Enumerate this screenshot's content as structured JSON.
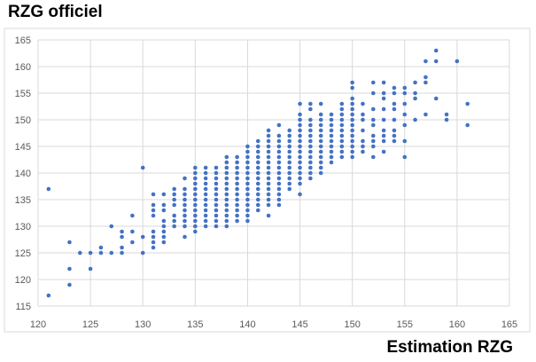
{
  "chart_data": {
    "type": "scatter",
    "xlabel": "Estimation RZG",
    "ylabel": "RZG officiel",
    "xlim": [
      120,
      165
    ],
    "ylim": [
      115,
      165
    ],
    "xticks": [
      120,
      125,
      130,
      135,
      140,
      145,
      150,
      155,
      160,
      165
    ],
    "yticks": [
      115,
      120,
      125,
      130,
      135,
      140,
      145,
      150,
      155,
      160,
      165
    ],
    "grid": true,
    "marker_color": "#4472c4",
    "series": [
      {
        "points": [
          [
            121,
            137
          ],
          [
            121,
            117
          ],
          [
            123,
            127
          ],
          [
            123,
            122
          ],
          [
            123,
            119
          ],
          [
            124,
            125
          ],
          [
            125,
            125
          ],
          [
            125,
            122
          ],
          [
            126,
            126
          ],
          [
            126,
            125
          ],
          [
            127,
            130
          ],
          [
            127,
            125
          ],
          [
            128,
            129
          ],
          [
            128,
            128
          ],
          [
            128,
            126
          ],
          [
            128,
            125
          ],
          [
            129,
            132
          ],
          [
            129,
            129
          ],
          [
            129,
            127
          ],
          [
            130,
            141
          ],
          [
            130,
            128
          ],
          [
            130,
            125
          ],
          [
            131,
            136
          ],
          [
            131,
            134
          ],
          [
            131,
            133
          ],
          [
            131,
            132
          ],
          [
            131,
            129
          ],
          [
            131,
            128
          ],
          [
            131,
            127
          ],
          [
            131,
            126
          ],
          [
            132,
            136
          ],
          [
            132,
            134
          ],
          [
            132,
            133
          ],
          [
            132,
            131
          ],
          [
            132,
            130
          ],
          [
            132,
            129
          ],
          [
            132,
            128
          ],
          [
            132,
            127
          ],
          [
            133,
            137
          ],
          [
            133,
            136
          ],
          [
            133,
            135
          ],
          [
            133,
            134
          ],
          [
            133,
            132
          ],
          [
            133,
            131
          ],
          [
            133,
            130
          ],
          [
            134,
            139
          ],
          [
            134,
            137
          ],
          [
            134,
            136
          ],
          [
            134,
            135
          ],
          [
            134,
            134
          ],
          [
            134,
            133
          ],
          [
            134,
            132
          ],
          [
            134,
            131
          ],
          [
            134,
            130
          ],
          [
            134,
            128
          ],
          [
            135,
            141
          ],
          [
            135,
            140
          ],
          [
            135,
            139
          ],
          [
            135,
            138
          ],
          [
            135,
            137
          ],
          [
            135,
            136
          ],
          [
            135,
            135
          ],
          [
            135,
            134
          ],
          [
            135,
            133
          ],
          [
            135,
            132
          ],
          [
            135,
            131
          ],
          [
            135,
            130
          ],
          [
            135,
            129
          ],
          [
            136,
            141
          ],
          [
            136,
            140
          ],
          [
            136,
            139
          ],
          [
            136,
            138
          ],
          [
            136,
            137
          ],
          [
            136,
            136
          ],
          [
            136,
            135
          ],
          [
            136,
            134
          ],
          [
            136,
            133
          ],
          [
            136,
            132
          ],
          [
            136,
            131
          ],
          [
            136,
            130
          ],
          [
            137,
            141
          ],
          [
            137,
            140
          ],
          [
            137,
            139
          ],
          [
            137,
            138
          ],
          [
            137,
            137
          ],
          [
            137,
            136
          ],
          [
            137,
            135
          ],
          [
            137,
            134
          ],
          [
            137,
            133
          ],
          [
            137,
            132
          ],
          [
            137,
            131
          ],
          [
            137,
            130
          ],
          [
            138,
            143
          ],
          [
            138,
            142
          ],
          [
            138,
            141
          ],
          [
            138,
            140
          ],
          [
            138,
            139
          ],
          [
            138,
            138
          ],
          [
            138,
            137
          ],
          [
            138,
            136
          ],
          [
            138,
            135
          ],
          [
            138,
            134
          ],
          [
            138,
            133
          ],
          [
            138,
            132
          ],
          [
            138,
            131
          ],
          [
            138,
            130
          ],
          [
            139,
            143
          ],
          [
            139,
            142
          ],
          [
            139,
            141
          ],
          [
            139,
            140
          ],
          [
            139,
            139
          ],
          [
            139,
            138
          ],
          [
            139,
            137
          ],
          [
            139,
            136
          ],
          [
            139,
            135
          ],
          [
            139,
            134
          ],
          [
            139,
            133
          ],
          [
            139,
            132
          ],
          [
            139,
            131
          ],
          [
            140,
            145
          ],
          [
            140,
            144
          ],
          [
            140,
            143
          ],
          [
            140,
            142
          ],
          [
            140,
            141
          ],
          [
            140,
            140
          ],
          [
            140,
            139
          ],
          [
            140,
            138
          ],
          [
            140,
            137
          ],
          [
            140,
            136
          ],
          [
            140,
            135
          ],
          [
            140,
            134
          ],
          [
            140,
            133
          ],
          [
            140,
            132
          ],
          [
            140,
            131
          ],
          [
            141,
            146
          ],
          [
            141,
            145
          ],
          [
            141,
            144
          ],
          [
            141,
            143
          ],
          [
            141,
            142
          ],
          [
            141,
            141
          ],
          [
            141,
            140
          ],
          [
            141,
            139
          ],
          [
            141,
            138
          ],
          [
            141,
            137
          ],
          [
            141,
            136
          ],
          [
            141,
            135
          ],
          [
            141,
            134
          ],
          [
            141,
            133
          ],
          [
            142,
            148
          ],
          [
            142,
            147
          ],
          [
            142,
            146
          ],
          [
            142,
            145
          ],
          [
            142,
            144
          ],
          [
            142,
            143
          ],
          [
            142,
            142
          ],
          [
            142,
            141
          ],
          [
            142,
            140
          ],
          [
            142,
            139
          ],
          [
            142,
            138
          ],
          [
            142,
            137
          ],
          [
            142,
            136
          ],
          [
            142,
            135
          ],
          [
            142,
            134
          ],
          [
            142,
            132
          ],
          [
            143,
            149
          ],
          [
            143,
            147
          ],
          [
            143,
            146
          ],
          [
            143,
            145
          ],
          [
            143,
            144
          ],
          [
            143,
            143
          ],
          [
            143,
            142
          ],
          [
            143,
            141
          ],
          [
            143,
            140
          ],
          [
            143,
            139
          ],
          [
            143,
            138
          ],
          [
            143,
            137
          ],
          [
            143,
            136
          ],
          [
            143,
            135
          ],
          [
            143,
            134
          ],
          [
            144,
            148
          ],
          [
            144,
            147
          ],
          [
            144,
            146
          ],
          [
            144,
            145
          ],
          [
            144,
            144
          ],
          [
            144,
            143
          ],
          [
            144,
            142
          ],
          [
            144,
            141
          ],
          [
            144,
            140
          ],
          [
            144,
            139
          ],
          [
            144,
            138
          ],
          [
            144,
            137
          ],
          [
            145,
            153
          ],
          [
            145,
            151
          ],
          [
            145,
            150
          ],
          [
            145,
            149
          ],
          [
            145,
            148
          ],
          [
            145,
            147
          ],
          [
            145,
            146
          ],
          [
            145,
            145
          ],
          [
            145,
            144
          ],
          [
            145,
            143
          ],
          [
            145,
            142
          ],
          [
            145,
            141
          ],
          [
            145,
            140
          ],
          [
            145,
            139
          ],
          [
            145,
            138
          ],
          [
            145,
            136
          ],
          [
            146,
            153
          ],
          [
            146,
            152
          ],
          [
            146,
            150
          ],
          [
            146,
            149
          ],
          [
            146,
            148
          ],
          [
            146,
            147
          ],
          [
            146,
            146
          ],
          [
            146,
            145
          ],
          [
            146,
            144
          ],
          [
            146,
            143
          ],
          [
            146,
            142
          ],
          [
            146,
            141
          ],
          [
            146,
            140
          ],
          [
            146,
            139
          ],
          [
            147,
            153
          ],
          [
            147,
            151
          ],
          [
            147,
            150
          ],
          [
            147,
            149
          ],
          [
            147,
            148
          ],
          [
            147,
            147
          ],
          [
            147,
            146
          ],
          [
            147,
            145
          ],
          [
            147,
            144
          ],
          [
            147,
            143
          ],
          [
            147,
            142
          ],
          [
            147,
            141
          ],
          [
            147,
            140
          ],
          [
            148,
            151
          ],
          [
            148,
            150
          ],
          [
            148,
            149
          ],
          [
            148,
            148
          ],
          [
            148,
            147
          ],
          [
            148,
            146
          ],
          [
            148,
            145
          ],
          [
            148,
            144
          ],
          [
            148,
            143
          ],
          [
            148,
            142
          ],
          [
            149,
            153
          ],
          [
            149,
            152
          ],
          [
            149,
            151
          ],
          [
            149,
            150
          ],
          [
            149,
            149
          ],
          [
            149,
            148
          ],
          [
            149,
            147
          ],
          [
            149,
            146
          ],
          [
            149,
            145
          ],
          [
            149,
            144
          ],
          [
            149,
            143
          ],
          [
            150,
            157
          ],
          [
            150,
            156
          ],
          [
            150,
            154
          ],
          [
            150,
            153
          ],
          [
            150,
            152
          ],
          [
            150,
            151
          ],
          [
            150,
            150
          ],
          [
            150,
            149
          ],
          [
            150,
            148
          ],
          [
            150,
            147
          ],
          [
            150,
            146
          ],
          [
            150,
            145
          ],
          [
            150,
            144
          ],
          [
            150,
            143
          ],
          [
            151,
            153
          ],
          [
            151,
            151
          ],
          [
            151,
            150
          ],
          [
            151,
            148
          ],
          [
            151,
            146
          ],
          [
            151,
            145
          ],
          [
            151,
            144
          ],
          [
            152,
            157
          ],
          [
            152,
            155
          ],
          [
            152,
            152
          ],
          [
            152,
            150
          ],
          [
            152,
            149
          ],
          [
            152,
            147
          ],
          [
            152,
            146
          ],
          [
            152,
            145
          ],
          [
            152,
            143
          ],
          [
            153,
            157
          ],
          [
            153,
            155
          ],
          [
            153,
            154
          ],
          [
            153,
            152
          ],
          [
            153,
            150
          ],
          [
            153,
            148
          ],
          [
            153,
            147
          ],
          [
            153,
            146
          ],
          [
            153,
            144
          ],
          [
            154,
            156
          ],
          [
            154,
            155
          ],
          [
            154,
            153
          ],
          [
            154,
            152
          ],
          [
            154,
            150
          ],
          [
            154,
            148
          ],
          [
            154,
            147
          ],
          [
            154,
            146
          ],
          [
            155,
            156
          ],
          [
            155,
            155
          ],
          [
            155,
            153
          ],
          [
            155,
            151
          ],
          [
            155,
            149
          ],
          [
            155,
            146
          ],
          [
            155,
            143
          ],
          [
            156,
            157
          ],
          [
            156,
            155
          ],
          [
            156,
            154
          ],
          [
            156,
            150
          ],
          [
            157,
            161
          ],
          [
            157,
            158
          ],
          [
            157,
            157
          ],
          [
            157,
            151
          ],
          [
            158,
            163
          ],
          [
            158,
            161
          ],
          [
            158,
            154
          ],
          [
            159,
            151
          ],
          [
            159,
            150
          ],
          [
            160,
            161
          ],
          [
            161,
            153
          ],
          [
            161,
            149
          ]
        ]
      }
    ]
  }
}
